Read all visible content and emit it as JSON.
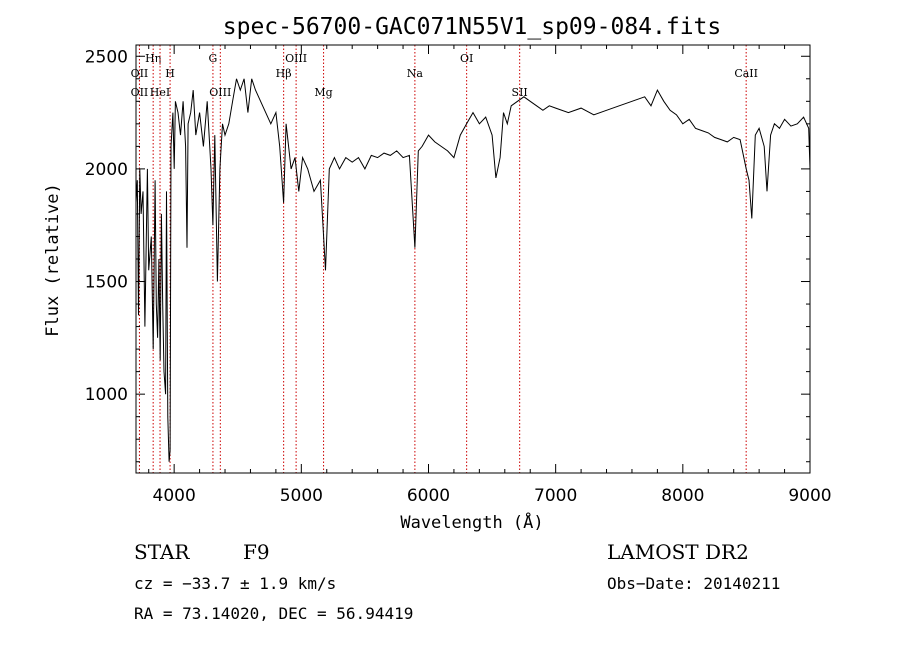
{
  "chart_data": {
    "type": "line",
    "title": "spec-56700-GAC071N55V1_sp09-084.fits",
    "xlabel": "Wavelength (Å)",
    "ylabel": "Flux (relative)",
    "xlim": [
      3700,
      9000
    ],
    "ylim": [
      650,
      2550
    ],
    "x_ticks": [
      4000,
      5000,
      6000,
      7000,
      8000,
      9000
    ],
    "x_tick_labels": [
      "4000",
      "5000",
      "6000",
      "7000",
      "8000",
      "9000"
    ],
    "y_ticks": [
      1000,
      1500,
      2000,
      2500
    ],
    "y_tick_labels": [
      "1000",
      "1500",
      "2000",
      "2500"
    ],
    "grid": false,
    "line_color": "#000000",
    "marker_color": "#cc0000",
    "series": [
      {
        "x": [
          3700,
          3710,
          3720,
          3730,
          3740,
          3755,
          3770,
          3790,
          3800,
          3820,
          3835,
          3850,
          3860,
          3870,
          3880,
          3890,
          3900,
          3910,
          3920,
          3933,
          3940,
          3950,
          3960,
          3968,
          3975,
          3990,
          4000,
          4010,
          4030,
          4050,
          4070,
          4090,
          4101,
          4110,
          4130,
          4150,
          4170,
          4200,
          4230,
          4260,
          4290,
          4305,
          4320,
          4340,
          4360,
          4380,
          4400,
          4430,
          4460,
          4490,
          4520,
          4550,
          4580,
          4610,
          4640,
          4680,
          4720,
          4760,
          4800,
          4830,
          4861,
          4880,
          4900,
          4920,
          4950,
          4980,
          5010,
          5050,
          5100,
          5150,
          5175,
          5190,
          5220,
          5260,
          5300,
          5350,
          5400,
          5450,
          5500,
          5550,
          5600,
          5650,
          5700,
          5750,
          5800,
          5850,
          5893,
          5920,
          5950,
          6000,
          6050,
          6100,
          6150,
          6200,
          6250,
          6300,
          6350,
          6400,
          6450,
          6500,
          6530,
          6563,
          6590,
          6620,
          6650,
          6700,
          6750,
          6800,
          6850,
          6900,
          6950,
          7000,
          7100,
          7200,
          7300,
          7400,
          7500,
          7600,
          7700,
          7750,
          7800,
          7850,
          7900,
          7950,
          8000,
          8050,
          8100,
          8150,
          8200,
          8250,
          8300,
          8350,
          8400,
          8450,
          8498,
          8520,
          8542,
          8570,
          8600,
          8640,
          8662,
          8690,
          8720,
          8760,
          8800,
          8850,
          8900,
          8950,
          8990,
          9000
        ],
        "y": [
          1850,
          1950,
          1350,
          2000,
          1800,
          1900,
          1300,
          2000,
          1550,
          1700,
          1200,
          1950,
          1400,
          1250,
          1600,
          1150,
          1800,
          1400,
          1100,
          1000,
          1900,
          900,
          700,
          750,
          2100,
          2250,
          2000,
          2300,
          2250,
          2150,
          2300,
          2100,
          1650,
          2200,
          2250,
          2350,
          2150,
          2250,
          2100,
          2300,
          2000,
          1750,
          2150,
          1500,
          2000,
          2200,
          2150,
          2200,
          2300,
          2400,
          2350,
          2400,
          2250,
          2400,
          2350,
          2300,
          2250,
          2200,
          2250,
          2100,
          1850,
          2200,
          2100,
          2000,
          2050,
          1900,
          2050,
          2000,
          1900,
          1950,
          1700,
          1550,
          2000,
          2050,
          2000,
          2050,
          2030,
          2050,
          2000,
          2060,
          2050,
          2070,
          2060,
          2080,
          2050,
          2060,
          1650,
          2080,
          2100,
          2150,
          2120,
          2100,
          2080,
          2050,
          2150,
          2200,
          2250,
          2200,
          2230,
          2150,
          1960,
          2050,
          2250,
          2200,
          2280,
          2300,
          2320,
          2300,
          2280,
          2260,
          2280,
          2270,
          2250,
          2270,
          2240,
          2260,
          2280,
          2300,
          2320,
          2280,
          2350,
          2300,
          2260,
          2240,
          2200,
          2220,
          2180,
          2170,
          2160,
          2140,
          2130,
          2120,
          2140,
          2130,
          2000,
          1950,
          1780,
          2150,
          2180,
          2100,
          1900,
          2150,
          2200,
          2180,
          2220,
          2190,
          2200,
          2230,
          2180,
          2000
        ]
      }
    ],
    "line_markers": [
      {
        "label": "OII",
        "x": 3727,
        "row": 2
      },
      {
        "label": "OII",
        "x": 3727,
        "row": 3
      },
      {
        "label": "Hη",
        "x": 3835,
        "row": 0
      },
      {
        "label": "HeI",
        "x": 3889,
        "row": 3
      },
      {
        "label": "H",
        "x": 3968,
        "row": 1
      },
      {
        "label": "G",
        "x": 4305,
        "row": 0
      },
      {
        "label": "OIII",
        "x": 4363,
        "row": 3
      },
      {
        "label": "Hβ",
        "x": 4861,
        "row": 1
      },
      {
        "label": "OIII",
        "x": 4959,
        "row": 0
      },
      {
        "label": "Mg",
        "x": 5175,
        "row": 3
      },
      {
        "label": "Na",
        "x": 5893,
        "row": 1
      },
      {
        "label": "OI",
        "x": 6300,
        "row": 0
      },
      {
        "label": "SII",
        "x": 6717,
        "row": 3
      },
      {
        "label": "CaII",
        "x": 8498,
        "row": 1
      }
    ]
  },
  "info": {
    "object_class": "STAR",
    "subclass": "F9",
    "cz": "cz = −33.7 ± 1.9 km/s",
    "coords": "RA =  73.14020, DEC =  56.94419",
    "survey": "LAMOST DR2",
    "obs_date": "Obs−Date: 20140211"
  }
}
